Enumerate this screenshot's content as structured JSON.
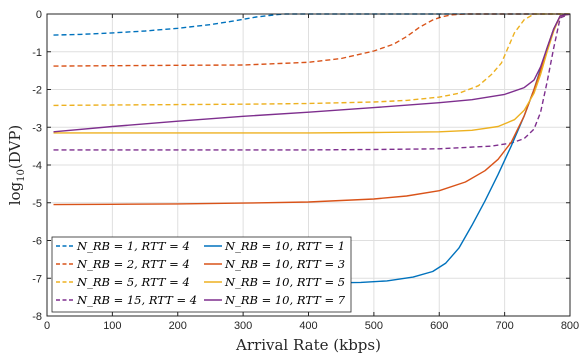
{
  "chart_data": {
    "type": "line",
    "xlabel": "Arrival Rate (kbps)",
    "ylabel_main": "log",
    "ylabel_sub": "10",
    "ylabel_rest": "(DVP)",
    "xlim": [
      0,
      800
    ],
    "ylim": [
      -8,
      0
    ],
    "xticks": [
      0,
      100,
      200,
      300,
      400,
      500,
      600,
      700,
      800
    ],
    "yticks": [
      0,
      -1,
      -2,
      -3,
      -4,
      -5,
      -6,
      -7,
      -8
    ],
    "grid": true,
    "legend_placement": "bottom-left",
    "series": [
      {
        "name": "N_RB = 1,  RTT = 4",
        "color": "#0072BD",
        "dash": true,
        "x": [
          10,
          50,
          100,
          150,
          200,
          250,
          280,
          300,
          320,
          340,
          355,
          365,
          375,
          800
        ],
        "y": [
          -0.56,
          -0.54,
          -0.5,
          -0.45,
          -0.38,
          -0.28,
          -0.2,
          -0.14,
          -0.08,
          -0.04,
          -0.01,
          0,
          0,
          0
        ]
      },
      {
        "name": "N_RB = 2,  RTT = 4",
        "color": "#D95319",
        "dash": true,
        "x": [
          10,
          100,
          200,
          300,
          400,
          450,
          500,
          530,
          550,
          570,
          590,
          605,
          620,
          640,
          800
        ],
        "y": [
          -1.38,
          -1.37,
          -1.36,
          -1.35,
          -1.28,
          -1.18,
          -0.98,
          -0.8,
          -0.6,
          -0.35,
          -0.16,
          -0.07,
          -0.02,
          0,
          0
        ]
      },
      {
        "name": "N_RB = 5,  RTT = 4",
        "color": "#EDB120",
        "dash": true,
        "x": [
          10,
          100,
          200,
          300,
          400,
          500,
          550,
          600,
          630,
          660,
          680,
          695,
          705,
          715,
          730,
          745,
          800
        ],
        "y": [
          -2.42,
          -2.41,
          -2.4,
          -2.39,
          -2.37,
          -2.33,
          -2.29,
          -2.2,
          -2.1,
          -1.9,
          -1.6,
          -1.3,
          -0.9,
          -0.5,
          -0.15,
          0,
          0
        ]
      },
      {
        "name": "N_RB = 15, RTT = 4",
        "color": "#7E2F8E",
        "dash": true,
        "x": [
          10,
          100,
          200,
          300,
          400,
          500,
          600,
          680,
          710,
          730,
          745,
          755,
          765,
          775,
          785,
          800
        ],
        "y": [
          -3.6,
          -3.6,
          -3.6,
          -3.6,
          -3.6,
          -3.59,
          -3.57,
          -3.5,
          -3.42,
          -3.3,
          -3.05,
          -2.6,
          -1.8,
          -0.9,
          -0.1,
          0
        ]
      },
      {
        "name": "N_RB = 10, RTT = 1",
        "color": "#0072BD",
        "dash": false,
        "x": [
          10,
          100,
          200,
          300,
          400,
          480,
          520,
          560,
          590,
          610,
          630,
          650,
          670,
          690,
          710,
          730,
          745,
          755,
          765,
          775,
          785,
          800
        ],
        "y": [
          -7.15,
          -7.14,
          -7.14,
          -7.13,
          -7.13,
          -7.11,
          -7.07,
          -6.97,
          -6.82,
          -6.6,
          -6.2,
          -5.6,
          -4.95,
          -4.25,
          -3.5,
          -2.7,
          -2.0,
          -1.45,
          -0.9,
          -0.4,
          -0.05,
          0
        ]
      },
      {
        "name": "N_RB = 10, RTT = 3",
        "color": "#D95319",
        "dash": false,
        "x": [
          10,
          100,
          200,
          300,
          400,
          500,
          550,
          600,
          640,
          670,
          690,
          710,
          730,
          745,
          755,
          765,
          775,
          785,
          800
        ],
        "y": [
          -5.05,
          -5.04,
          -5.03,
          -5.01,
          -4.98,
          -4.9,
          -4.82,
          -4.68,
          -4.45,
          -4.15,
          -3.85,
          -3.4,
          -2.7,
          -2.0,
          -1.5,
          -0.9,
          -0.4,
          -0.05,
          0
        ]
      },
      {
        "name": "N_RB = 10, RTT = 5",
        "color": "#EDB120",
        "dash": false,
        "x": [
          10,
          100,
          200,
          300,
          400,
          500,
          600,
          650,
          690,
          715,
          730,
          745,
          755,
          765,
          775,
          785,
          800
        ],
        "y": [
          -3.15,
          -3.15,
          -3.15,
          -3.15,
          -3.15,
          -3.14,
          -3.12,
          -3.08,
          -2.98,
          -2.8,
          -2.55,
          -2.1,
          -1.6,
          -1.0,
          -0.45,
          -0.05,
          0
        ]
      },
      {
        "name": "N_RB = 10, RTT = 7",
        "color": "#7E2F8E",
        "dash": false,
        "x": [
          10,
          100,
          200,
          300,
          400,
          500,
          600,
          650,
          700,
          730,
          745,
          755,
          765,
          775,
          785,
          800
        ],
        "y": [
          -3.12,
          -2.98,
          -2.84,
          -2.71,
          -2.6,
          -2.48,
          -2.35,
          -2.27,
          -2.13,
          -1.95,
          -1.75,
          -1.4,
          -0.9,
          -0.4,
          -0.05,
          0
        ]
      }
    ]
  },
  "legend": {
    "col1": [
      "N_RB = 1,  RTT = 4",
      "N_RB = 2,  RTT = 4",
      "N_RB = 5,  RTT = 4",
      "N_RB = 15, RTT = 4"
    ],
    "col2": [
      "N_RB = 10, RTT = 1",
      "N_RB = 10, RTT = 3",
      "N_RB = 10, RTT = 5",
      "N_RB = 10, RTT = 7"
    ]
  }
}
